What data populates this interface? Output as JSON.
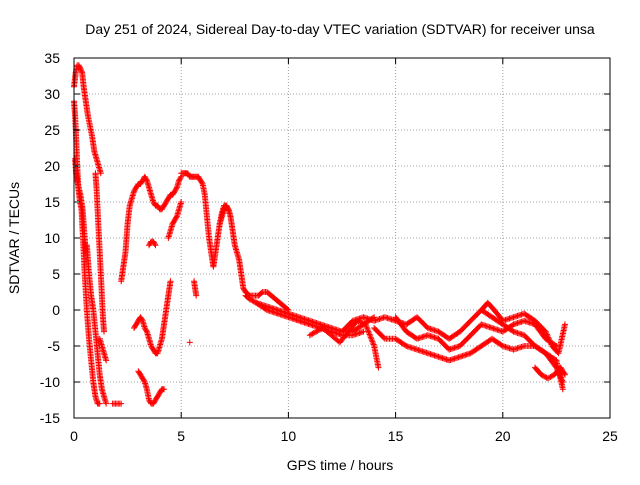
{
  "colors": {
    "background": "#ffffff",
    "axis": "#000000",
    "grid": "#a0a0a0",
    "series": "#ff0000"
  },
  "chart_data": {
    "type": "scatter",
    "title": "Day 251 of 2024, Sidereal Day-to-day VTEC variation (SDTVAR) for receiver unsa",
    "xlabel": "GPS time / hours",
    "ylabel": "SDTVAR / TECUs",
    "xlim": [
      0,
      25
    ],
    "ylim": [
      -15,
      35
    ],
    "xticks": [
      0,
      5,
      10,
      15,
      20,
      25
    ],
    "yticks": [
      -15,
      -10,
      -5,
      0,
      5,
      10,
      15,
      20,
      25,
      30,
      35
    ],
    "grid": true,
    "marker": "plus",
    "series": [
      {
        "name": "SDTVAR",
        "color": "#ff0000",
        "tracks": [
          {
            "x": [
              0.0,
              0.08,
              0.15,
              0.22,
              0.3,
              0.38,
              0.45,
              0.55,
              0.65,
              0.75,
              0.85,
              0.95,
              1.05,
              1.15,
              1.25
            ],
            "y": [
              31,
              33,
              34,
              34,
              33.5,
              33,
              31,
              29,
              27,
              25.5,
              24,
              22,
              21,
              20,
              19
            ]
          },
          {
            "x": [
              0.0,
              0.05,
              0.1,
              0.15,
              0.2,
              0.28,
              0.35,
              0.42,
              0.5,
              0.6,
              0.7,
              0.8,
              0.9,
              1.0,
              1.1,
              1.2
            ],
            "y": [
              29,
              27,
              24,
              20,
              17,
              15,
              14,
              10,
              5,
              0,
              -4,
              -7,
              -10,
              -12,
              -13,
              -13
            ]
          },
          {
            "x": [
              0.05,
              0.1,
              0.15,
              0.22,
              0.3,
              0.4,
              0.5,
              0.55
            ],
            "y": [
              21,
              19,
              18,
              17,
              16,
              14,
              10,
              8
            ]
          },
          {
            "x": [
              0.6,
              0.7,
              0.8,
              0.9,
              1.0,
              1.1,
              1.2,
              1.3,
              1.4,
              1.5
            ],
            "y": [
              9,
              5,
              2,
              0,
              -3,
              -6,
              -9,
              -11,
              -12,
              -13
            ]
          },
          {
            "x": [
              1.0,
              1.05,
              1.1,
              1.15,
              1.2,
              1.25,
              1.3,
              1.35,
              1.4
            ],
            "y": [
              19,
              17,
              14,
              11,
              8,
              5,
              2,
              -1,
              -3
            ]
          },
          {
            "x": [
              1.2,
              1.3,
              1.4,
              1.5
            ],
            "y": [
              -4,
              -5,
              -6,
              -7
            ]
          },
          {
            "x": [
              1.8,
              2.0,
              2.2
            ],
            "y": [
              -13,
              -13,
              -13
            ]
          },
          {
            "x": [
              2.2,
              2.3,
              2.4,
              2.5,
              2.6,
              2.7,
              2.8,
              2.9,
              3.0,
              3.1,
              3.2,
              3.3,
              3.4,
              3.5,
              3.6,
              3.7,
              3.8,
              3.9,
              4.0,
              4.1,
              4.2,
              4.3,
              4.4,
              4.5,
              4.6,
              4.7,
              4.8,
              4.9,
              5.0
            ],
            "y": [
              4,
              6,
              8,
              12,
              14.5,
              15.5,
              16.5,
              17,
              17.5,
              17.5,
              18,
              18.5,
              18,
              17,
              16,
              15,
              14.5,
              14.5,
              14,
              14,
              14.5,
              15,
              15.5,
              16,
              16,
              16.5,
              17,
              18,
              18.5
            ]
          },
          {
            "x": [
              2.8,
              2.9,
              3.0,
              3.1,
              3.2,
              3.3,
              3.4,
              3.5,
              3.6,
              3.7,
              3.8,
              3.9,
              4.0,
              4.1,
              4.2,
              4.3,
              4.4,
              4.5
            ],
            "y": [
              -2.5,
              -2,
              -1.5,
              -1,
              -1.5,
              -2.5,
              -3,
              -4,
              -5,
              -5.5,
              -6,
              -6,
              -5,
              -4,
              -2,
              0,
              2,
              4
            ]
          },
          {
            "x": [
              3.0,
              3.1,
              3.2,
              3.3,
              3.4,
              3.5,
              3.6,
              3.7,
              3.8,
              3.9,
              4.0,
              4.1,
              4.2
            ],
            "y": [
              -8.5,
              -9,
              -9.5,
              -10,
              -11,
              -12.5,
              -13,
              -13,
              -12.5,
              -12,
              -11.5,
              -11,
              -11
            ]
          },
          {
            "x": [
              3.5,
              3.6,
              3.7,
              3.8
            ],
            "y": [
              9,
              9.5,
              9.5,
              9
            ]
          },
          {
            "x": [
              4.4,
              4.5,
              4.6,
              4.7,
              4.8,
              4.9,
              5.0
            ],
            "y": [
              10,
              11,
              12,
              12.5,
              13,
              14,
              15
            ]
          },
          {
            "x": [
              5.0,
              5.1,
              5.2,
              5.3,
              5.4,
              5.5,
              5.6,
              5.7,
              5.8,
              5.9,
              6.0,
              6.1,
              6.2,
              6.3,
              6.4,
              6.5,
              6.6,
              6.7,
              6.8,
              6.9,
              7.0,
              7.1,
              7.2,
              7.3
            ],
            "y": [
              19,
              19,
              19,
              19,
              18.5,
              18.5,
              18.5,
              18.5,
              18.5,
              18,
              17.5,
              16,
              13,
              10,
              8,
              6,
              8,
              10,
              12,
              13.5,
              14.5,
              14.5,
              14,
              13
            ]
          },
          {
            "x": [
              5.6,
              5.7
            ],
            "y": [
              4,
              2
            ]
          },
          {
            "x": [
              5.4
            ],
            "y": [
              -4.5
            ]
          },
          {
            "x": [
              6.8,
              6.9,
              7.0,
              7.1,
              7.2,
              7.3,
              7.4,
              7.5,
              7.6,
              7.7,
              7.8,
              7.9,
              8.0,
              8.2,
              8.4,
              8.6,
              8.8,
              9.0,
              9.2,
              9.4,
              9.6,
              9.8,
              10.0
            ],
            "y": [
              12,
              13,
              14,
              14.5,
              14,
              13,
              11,
              9,
              8,
              7,
              5,
              3,
              2.5,
              2,
              2,
              2,
              2.5,
              2.5,
              2,
              1.5,
              1,
              0.5,
              0
            ]
          },
          {
            "x": [
              8.0,
              8.2,
              8.5,
              9.0,
              9.5,
              10.0,
              10.5,
              11.0,
              11.5,
              12.0,
              12.5,
              13.0,
              13.5,
              14.0
            ],
            "y": [
              2,
              1.5,
              1,
              0.5,
              0,
              -0.5,
              -1,
              -1.5,
              -2,
              -2.5,
              -3,
              -3,
              -2,
              -1
            ]
          },
          {
            "x": [
              8.5,
              9.0,
              9.5,
              10.0,
              10.5,
              11.0,
              11.5,
              12.0,
              12.5,
              13.0,
              13.5
            ],
            "y": [
              1,
              0,
              -0.5,
              -1,
              -1.5,
              -2,
              -2.5,
              -3,
              -3.5,
              -3.5,
              -3
            ]
          },
          {
            "x": [
              11.0,
              11.3,
              11.6,
              12.0,
              12.4,
              12.8,
              13.2,
              13.6,
              14.0,
              14.2
            ],
            "y": [
              -3.5,
              -3,
              -2.5,
              -3.5,
              -4.5,
              -3,
              -1.5,
              -2,
              -5,
              -8
            ]
          },
          {
            "x": [
              12.5,
              13.0,
              13.5,
              14.0,
              14.5,
              15.0,
              15.5,
              16.0,
              16.5,
              17.0,
              17.5,
              18.0,
              18.5,
              19.0,
              19.5,
              20.0,
              20.5,
              21.0,
              21.5,
              22.0,
              22.5,
              22.8
            ],
            "y": [
              -3,
              -1.5,
              -1,
              -1.5,
              -1,
              -1.5,
              -2,
              -1,
              -2.5,
              -3,
              -4,
              -3,
              -1.5,
              0,
              -1,
              -2,
              -3,
              -3.5,
              -5,
              -6,
              -8,
              -10
            ]
          },
          {
            "x": [
              14.0,
              14.5,
              15.0,
              15.5,
              16.0,
              16.5,
              17.0,
              17.5,
              18.0,
              18.5,
              19.0,
              19.5,
              20.0,
              20.5,
              21.0,
              21.5,
              22.0,
              22.5,
              22.8
            ],
            "y": [
              -2.5,
              -4,
              -4,
              -5,
              -5.5,
              -6,
              -6.5,
              -7,
              -6.5,
              -6,
              -5,
              -4,
              -5,
              -5.5,
              -5,
              -5,
              -6,
              -7,
              -11
            ]
          },
          {
            "x": [
              15.0,
              15.5,
              16.0,
              16.5,
              17.0,
              17.5,
              18.0,
              18.5,
              19.0,
              19.5,
              20.0,
              20.5,
              21.0,
              21.5,
              22.0,
              22.5
            ],
            "y": [
              -1,
              -3,
              -4,
              -3.5,
              -4,
              -5.5,
              -5,
              -3.5,
              -2,
              -2.5,
              -3,
              -2,
              -1.5,
              -2,
              -4,
              -5
            ]
          },
          {
            "x": [
              19.0,
              19.3,
              19.6,
              20.0,
              20.5,
              21.0,
              21.5,
              22.0,
              22.3,
              22.6,
              22.9
            ],
            "y": [
              0,
              1,
              0,
              -1.5,
              -1,
              -0.5,
              -1.5,
              -3,
              -5,
              -6,
              -2
            ]
          },
          {
            "x": [
              21.5,
              21.8,
              22.1,
              22.4,
              22.7,
              22.9
            ],
            "y": [
              -8,
              -9,
              -9.5,
              -9,
              -8,
              -9
            ]
          }
        ]
      }
    ]
  }
}
